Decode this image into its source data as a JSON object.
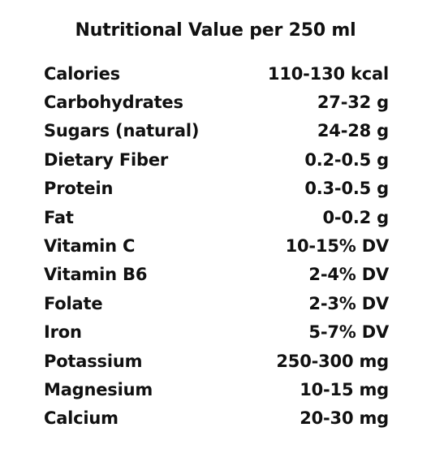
{
  "title": "Nutritional Value per 250 ml",
  "rows": [
    {
      "nutrient": "Calories",
      "value": "110-130 kcal"
    },
    {
      "nutrient": "Carbohydrates",
      "value": "27-32 g"
    },
    {
      "nutrient": "Sugars (natural)",
      "value": "24-28 g"
    },
    {
      "nutrient": "Dietary Fiber",
      "value": "0.2-0.5 g"
    },
    {
      "nutrient": "Protein",
      "value": "0.3-0.5 g"
    },
    {
      "nutrient": "Fat",
      "value": "0-0.2 g"
    },
    {
      "nutrient": "Vitamin C",
      "value": "10-15% DV"
    },
    {
      "nutrient": "Vitamin B6",
      "value": "2-4% DV"
    },
    {
      "nutrient": "Folate",
      "value": "2-3% DV"
    },
    {
      "nutrient": "Iron",
      "value": "5-7% DV"
    },
    {
      "nutrient": "Potassium",
      "value": "250-300 mg"
    },
    {
      "nutrient": "Magnesium",
      "value": "10-15 mg"
    },
    {
      "nutrient": "Calcium",
      "value": "20-30 mg"
    }
  ]
}
